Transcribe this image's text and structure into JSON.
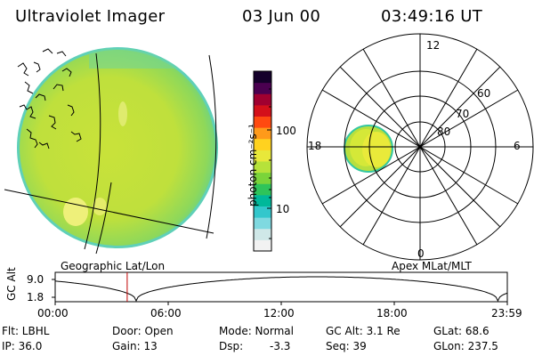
{
  "header": {
    "title": "Ultraviolet Imager",
    "date": "03 Jun 00",
    "time": "03:49:16 UT"
  },
  "colorbar": {
    "label": "photon cm⁻²s⁻¹",
    "tick_high": "100",
    "tick_low": "10",
    "colors": [
      "#f2f2f2",
      "#cfe8e8",
      "#7fd9e0",
      "#33c7cc",
      "#00b89a",
      "#2ec45a",
      "#7ad43a",
      "#b6e23a",
      "#e8e83a",
      "#ffd21f",
      "#ff9a1a",
      "#ff4a10",
      "#d4101a",
      "#a00030",
      "#4a0050",
      "#14002a"
    ]
  },
  "geo_map": {
    "label": "Geographic Lat/Lon"
  },
  "polar_map": {
    "label": "Apex MLat/MLT",
    "mlt_labels": {
      "top": "12",
      "left": "18",
      "right": "6",
      "bottom": "0"
    },
    "lat_labels": [
      "60",
      "70",
      "80"
    ]
  },
  "orbit_plot": {
    "ylabel": "GC Alt",
    "ytick_high": "9.0",
    "ytick_low": "1.8",
    "xticks": [
      "00:00",
      "06:00",
      "12:00",
      "18:00",
      "23:59"
    ],
    "current_time_hours": 3.82
  },
  "info": {
    "flt": "Flt: LBHL",
    "ip": "IP: 36.0",
    "door": "Door: Open",
    "gain": "Gain: 13",
    "mode": "Mode: Normal",
    "dsp": "Dsp:",
    "dsp_val": "-3.3",
    "gcalt": "GC Alt: 3.1 Re",
    "seq": "Seq: 39",
    "glat": "GLat:  68.6",
    "glon": "GLon: 237.5"
  }
}
